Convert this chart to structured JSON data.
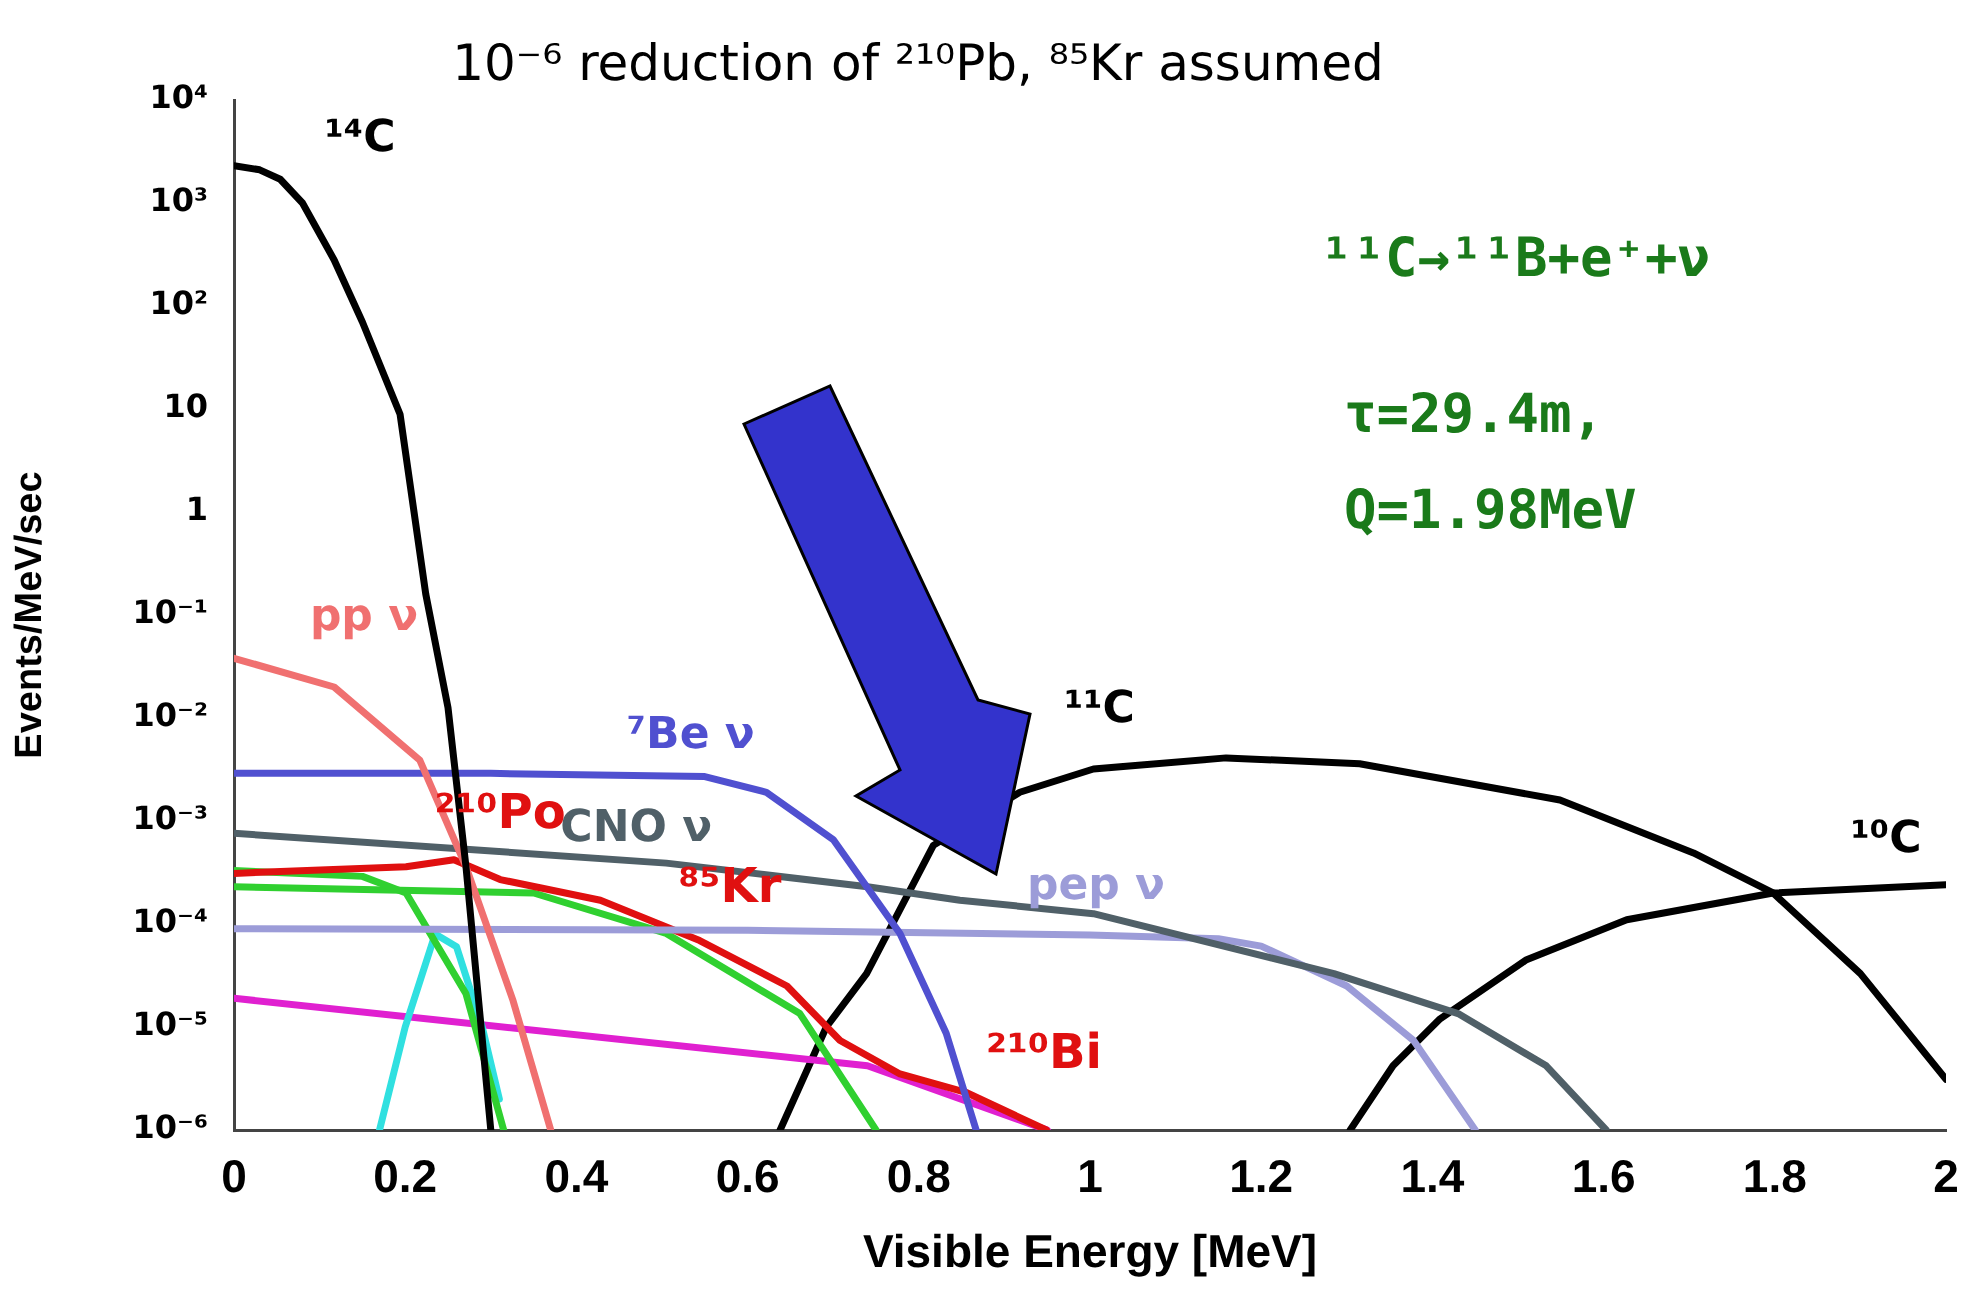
{
  "chart_data": {
    "type": "line",
    "title": "10⁻⁶ reduction of ²¹⁰Pb, ⁸⁵Kr assumed",
    "xlabel": "Visible Energy [MeV]",
    "ylabel": "Events/MeV/sec",
    "xlim": [
      0,
      2
    ],
    "xticks": [
      0,
      0.2,
      0.4,
      0.6,
      0.8,
      1,
      1.2,
      1.4,
      1.6,
      1.8,
      2
    ],
    "ylim": [
      1e-06,
      10000
    ],
    "yticks": [
      {
        "value": 1e-06,
        "label": "10⁻⁶"
      },
      {
        "value": 1e-05,
        "label": "10⁻⁵"
      },
      {
        "value": 0.0001,
        "label": "10⁻⁴"
      },
      {
        "value": 0.001,
        "label": "10⁻³"
      },
      {
        "value": 0.01,
        "label": "10⁻²"
      },
      {
        "value": 0.1,
        "label": "10⁻¹"
      },
      1,
      10,
      {
        "value": 100,
        "label": "10²"
      },
      {
        "value": 1000,
        "label": "10³"
      },
      {
        "value": 10000,
        "label": "10⁴"
      }
    ],
    "log": "y",
    "grid": false,
    "legend": false,
    "marker": "none",
    "line_style": "solid",
    "series": [
      {
        "name": "¹⁴C",
        "color": "#000000",
        "x": [
          0,
          0.03,
          0.054,
          0.08,
          0.117,
          0.15,
          0.194,
          0.224,
          0.25,
          0.271,
          0.3
        ],
        "values": [
          2300,
          2100,
          1700,
          1000,
          280,
          70,
          8.9,
          0.16,
          0.0126,
          0.00036,
          1e-06
        ]
      },
      {
        "name": "pp ν",
        "color": "#f07070",
        "x": [
          0,
          0.117,
          0.217,
          0.271,
          0.326,
          0.37
        ],
        "values": [
          0.038,
          0.02,
          0.0039,
          0.00036,
          1.8e-05,
          1e-06
        ]
      },
      {
        "name": "⁷Be ν",
        "color": "#5050d0",
        "x": [
          0,
          0.3,
          0.55,
          0.622,
          0.7,
          0.778,
          0.832,
          0.867
        ],
        "values": [
          0.0029,
          0.0029,
          0.0027,
          0.0019,
          0.00066,
          8.1e-05,
          8.7e-06,
          1e-06
        ]
      },
      {
        "name": "CNO ν",
        "color": "#506068",
        "x": [
          0,
          0.505,
          0.74,
          0.848,
          1.004,
          1.285,
          1.43,
          1.533,
          1.603
        ],
        "values": [
          0.00076,
          0.00039,
          0.00023,
          0.00017,
          0.000126,
          3.3e-05,
          1.35e-05,
          4.2e-06,
          1e-06
        ]
      },
      {
        "name": "pep ν",
        "color": "#9c9cd8",
        "x": [
          0,
          0.6,
          1.0,
          1.15,
          1.2,
          1.3,
          1.378,
          1.45
        ],
        "values": [
          9e-05,
          8.7e-05,
          7.8e-05,
          7.2e-05,
          6.1e-05,
          2.5e-05,
          7.4e-06,
          1e-06
        ]
      },
      {
        "color": "#e01010",
        "x": [
          0,
          0.201,
          0.257,
          0.311,
          0.428,
          0.544,
          0.646,
          0.708,
          0.778,
          0.856,
          0.949
        ],
        "values": [
          0.00031,
          0.00036,
          0.00042,
          0.00027,
          0.00017,
          6.9e-05,
          2.5e-05,
          7.4e-06,
          3.5e-06,
          2.3e-06,
          1e-06
        ]
      },
      {
        "color": "#30d030",
        "x": [
          0,
          0.15,
          0.201,
          0.271,
          0.315
        ],
        "values": [
          0.00033,
          0.00029,
          0.0002,
          2.1e-05,
          1e-06
        ]
      },
      {
        "color": "#30d030",
        "x": [
          0,
          0.35,
          0.505,
          0.661,
          0.75
        ],
        "values": [
          0.00023,
          0.0002,
          8.1e-05,
          1.35e-05,
          1e-06
        ]
      },
      {
        "color": "#30e0e0",
        "x": [
          0.17,
          0.2,
          0.235,
          0.26,
          0.29,
          0.31
        ],
        "values": [
          1e-06,
          1e-05,
          8e-05,
          6e-05,
          1e-05,
          2e-06
        ]
      },
      {
        "color": "#e020d0",
        "x": [
          0,
          0.74,
          0.95
        ],
        "values": [
          1.9e-05,
          4.2e-06,
          1e-06
        ]
      },
      {
        "name": "¹¹C",
        "color": "#000000",
        "x": [
          0.638,
          0.692,
          0.739,
          0.817,
          0.918,
          1.004,
          1.159,
          1.315,
          1.549,
          1.705,
          1.798,
          1.9,
          2.0
        ],
        "values": [
          1e-06,
          1e-05,
          3.3e-05,
          0.00058,
          0.0019,
          0.0032,
          0.0041,
          0.0036,
          0.0016,
          0.00049,
          0.0002,
          3.3e-05,
          3.1e-06
        ]
      },
      {
        "name": "¹⁰C",
        "color": "#000000",
        "x": [
          1.304,
          1.354,
          1.409,
          1.51,
          1.627,
          1.798,
          2.0
        ],
        "values": [
          1e-06,
          4.2e-06,
          1.2e-05,
          4.5e-05,
          0.00011,
          0.0002,
          0.00024
        ]
      }
    ],
    "annotations": [
      "²¹⁰Po",
      "⁸⁵Kr",
      "²¹⁰Bi",
      "¹¹C→¹¹B+e⁺+ν",
      "τ=29.4m,",
      "Q=1.98MeV"
    ]
  }
}
